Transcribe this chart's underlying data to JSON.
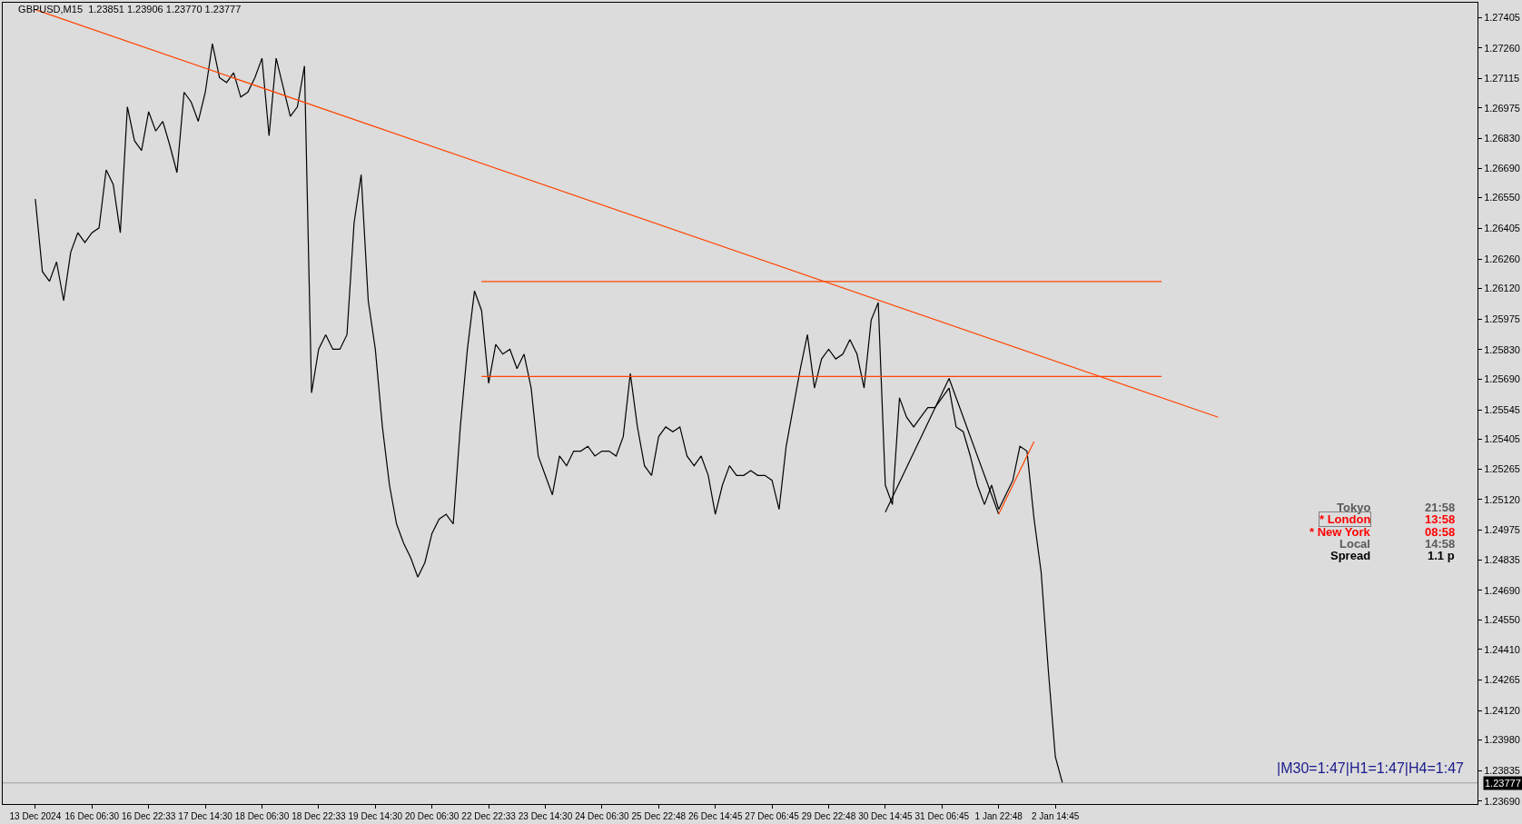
{
  "chart_data": {
    "type": "line",
    "title": "GBPUSD,M15  1.23851 1.23906 1.23770 1.23777",
    "categories": [
      "13 Dec 2024",
      null,
      null,
      null,
      null,
      null,
      null,
      null,
      "16 Dec 06:30",
      null,
      null,
      null,
      null,
      null,
      null,
      null,
      "16 Dec 22:33",
      null,
      null,
      null,
      null,
      null,
      null,
      null,
      "17 Dec 14:30",
      null,
      null,
      null,
      null,
      null,
      null,
      null,
      "18 Dec 06:30",
      null,
      null,
      null,
      null,
      null,
      null,
      null,
      "18 Dec 22:33",
      null,
      null,
      null,
      null,
      null,
      null,
      null,
      "19 Dec 14:30",
      null,
      null,
      null,
      null,
      null,
      null,
      null,
      "20 Dec 06:30",
      null,
      null,
      null,
      null,
      null,
      null,
      null,
      "22 Dec 22:33",
      null,
      null,
      null,
      null,
      null,
      null,
      null,
      "23 Dec 14:30",
      null,
      null,
      null,
      null,
      null,
      null,
      null,
      "24 Dec 06:30",
      null,
      null,
      null,
      null,
      null,
      null,
      null,
      "25 Dec 22:48",
      null,
      null,
      null,
      null,
      null,
      null,
      null,
      "26 Dec 14:45",
      null,
      null,
      null,
      null,
      null,
      null,
      null,
      "27 Dec 06:45",
      null,
      null,
      null,
      null,
      null,
      null,
      null,
      "29 Dec 22:48",
      null,
      null,
      null,
      null,
      null,
      null,
      null,
      "30 Dec 14:45",
      null,
      null,
      null,
      null,
      null,
      null,
      null,
      "31 Dec 06:45",
      null,
      null,
      null,
      null,
      null,
      null,
      null,
      "1 Jan 22:48",
      null,
      null,
      null,
      null,
      null,
      null,
      null,
      "2 Jan 14:45",
      null,
      null,
      null,
      null,
      null,
      null,
      null,
      null,
      null,
      null,
      null,
      null,
      null,
      null,
      null,
      null,
      null,
      null,
      null,
      null,
      null,
      null,
      null,
      null,
      null,
      null,
      null,
      null,
      null,
      null,
      null,
      null,
      null,
      null,
      null,
      null,
      null,
      null,
      null,
      null,
      null,
      null,
      null,
      null,
      null,
      null,
      null,
      null,
      null,
      null,
      null,
      null,
      null,
      null,
      null,
      null,
      null,
      null,
      null
    ],
    "ylim": [
      1.23677,
      1.27474
    ],
    "yticks": [
      {
        "value": 1.27405,
        "label": "1.27405"
      },
      {
        "value": 1.2726,
        "label": "1.27260"
      },
      {
        "value": 1.27115,
        "label": "1.27115"
      },
      {
        "value": 1.26975,
        "label": "1.26975"
      },
      {
        "value": 1.2683,
        "label": "1.26830"
      },
      {
        "value": 1.2669,
        "label": "1.26690"
      },
      {
        "value": 1.2655,
        "label": "1.26550"
      },
      {
        "value": 1.26405,
        "label": "1.26405"
      },
      {
        "value": 1.2626,
        "label": "1.26260"
      },
      {
        "value": 1.2612,
        "label": "1.26120"
      },
      {
        "value": 1.25975,
        "label": "1.25975"
      },
      {
        "value": 1.2583,
        "label": "1.25830"
      },
      {
        "value": 1.2569,
        "label": "1.25690"
      },
      {
        "value": 1.25545,
        "label": "1.25545"
      },
      {
        "value": 1.25405,
        "label": "1.25405"
      },
      {
        "value": 1.25265,
        "label": "1.25265"
      },
      {
        "value": 1.2512,
        "label": "1.25120"
      },
      {
        "value": 1.24975,
        "label": "1.24975"
      },
      {
        "value": 1.24835,
        "label": "1.24835"
      },
      {
        "value": 1.2469,
        "label": "1.24690"
      },
      {
        "value": 1.2455,
        "label": "1.24550"
      },
      {
        "value": 1.2441,
        "label": "1.24410"
      },
      {
        "value": 1.24265,
        "label": "1.24265"
      },
      {
        "value": 1.2412,
        "label": "1.24120"
      },
      {
        "value": 1.2398,
        "label": "1.23980"
      },
      {
        "value": 1.23835,
        "label": "1.23835"
      },
      {
        "value": 1.2369,
        "label": "1.23690"
      }
    ],
    "grid": false,
    "series": [
      {
        "color": "#000000",
        "values": [
          1.26544,
          1.262,
          1.26154,
          1.26246,
          1.26062,
          1.26292,
          1.26384,
          1.26338,
          1.26384,
          1.26407,
          1.26682,
          1.26613,
          1.26384,
          1.26981,
          1.2682,
          1.26774,
          1.26958,
          1.26866,
          1.26912,
          1.26797,
          1.26669,
          1.2705,
          1.27004,
          1.26912,
          1.2705,
          1.2728,
          1.27119,
          1.27096,
          1.27142,
          1.27027,
          1.2705,
          1.27119,
          1.27211,
          1.26843,
          1.27211,
          1.27073,
          1.26935,
          1.26981,
          1.27174,
          1.25625,
          1.25832,
          1.25901,
          1.25832,
          1.25832,
          1.25901,
          1.2643,
          1.26659,
          1.26062,
          1.25832,
          1.25464,
          1.25188,
          1.25004,
          1.24913,
          1.24844,
          1.24752,
          1.24821,
          1.24959,
          1.25027,
          1.2505,
          1.25004,
          1.25464,
          1.25832,
          1.26108,
          1.26016,
          1.25671,
          1.25855,
          1.25809,
          1.25832,
          1.2574,
          1.25809,
          1.25648,
          1.25326,
          1.25234,
          1.25142,
          1.25326,
          1.2528,
          1.25349,
          1.25349,
          1.25372,
          1.25326,
          1.25349,
          1.25349,
          1.25326,
          1.25418,
          1.25717,
          1.25464,
          1.2528,
          1.25234,
          1.25418,
          1.25464,
          1.25441,
          1.25464,
          1.25326,
          1.2528,
          1.25326,
          1.25234,
          1.2505,
          1.25188,
          1.2528,
          1.25234,
          1.25234,
          1.25257,
          1.25234,
          1.25234,
          1.25211,
          1.25073,
          1.25372,
          1.25556,
          1.2574,
          1.25901,
          1.25648,
          1.25786,
          1.25832,
          1.25786,
          1.25809,
          1.25878,
          1.25809,
          1.25648,
          1.2597,
          1.26053,
          1.25188,
          1.25096,
          1.25602,
          1.2551,
          1.25464,
          1.2551,
          1.25556,
          1.25556,
          1.25602,
          1.25648,
          1.25464,
          1.25441,
          1.25326,
          1.25188,
          1.25096,
          1.25188,
          1.25073,
          1.25142,
          1.25211,
          1.25372,
          1.25349,
          1.25027,
          1.24775,
          1.24315,
          1.23901,
          1.23777,
          null,
          null,
          null,
          null,
          null,
          null,
          null,
          null,
          null,
          null,
          null,
          null,
          null,
          null,
          null,
          null,
          null,
          null,
          null,
          null,
          null,
          null,
          null,
          null,
          null,
          null,
          null,
          null,
          null,
          null,
          null,
          null,
          null,
          null,
          null,
          null,
          null,
          null,
          null,
          null,
          null,
          null,
          null,
          null,
          null,
          null,
          null,
          null,
          null,
          null,
          null,
          null,
          null,
          null,
          null,
          null,
          null,
          null
        ]
      },
      {
        "color": "#ff4500",
        "values": [
          1.27441,
          null,
          null,
          null,
          null,
          null,
          null,
          null,
          null,
          null,
          null,
          null,
          null,
          null,
          null,
          null,
          null,
          null,
          null,
          null,
          null,
          null,
          null,
          null,
          null,
          null,
          null,
          null,
          null,
          null,
          null,
          null,
          null,
          null,
          null,
          null,
          null,
          null,
          null,
          null,
          null,
          null,
          null,
          null,
          null,
          null,
          null,
          null,
          null,
          null,
          null,
          null,
          null,
          null,
          null,
          null,
          null,
          null,
          null,
          null,
          null,
          null,
          null,
          null,
          null,
          null,
          null,
          null,
          null,
          null,
          null,
          null,
          null,
          null,
          null,
          null,
          null,
          null,
          null,
          null,
          null,
          null,
          null,
          null,
          null,
          null,
          null,
          null,
          null,
          null,
          null,
          null,
          null,
          null,
          null,
          null,
          null,
          null,
          null,
          null,
          null,
          null,
          null,
          null,
          null,
          null,
          null,
          null,
          null,
          null,
          null,
          null,
          null,
          null,
          null,
          null,
          null,
          null,
          null,
          null,
          null,
          null,
          null,
          null,
          null,
          null,
          null,
          null,
          null,
          null,
          null,
          null,
          null,
          null,
          null,
          null,
          null,
          null,
          null,
          null,
          null,
          null,
          null,
          null,
          null,
          null,
          null,
          null,
          null,
          null,
          null,
          null,
          null,
          null,
          null,
          null,
          null,
          null,
          null,
          null,
          null,
          null,
          null,
          null,
          null,
          null,
          null,
          1.2551,
          null,
          null,
          null,
          null,
          null,
          null,
          null,
          null,
          null,
          null,
          null,
          null,
          null,
          null,
          null,
          null,
          null,
          null,
          null,
          null,
          null,
          null,
          null,
          null,
          null,
          null,
          null,
          null,
          null,
          null,
          null,
          null,
          null,
          null,
          null,
          null
        ]
      },
      {
        "color": "#ff4500",
        "values": [
          null,
          null,
          null,
          null,
          null,
          null,
          null,
          null,
          null,
          null,
          null,
          null,
          null,
          null,
          null,
          null,
          null,
          null,
          null,
          null,
          null,
          null,
          null,
          null,
          null,
          null,
          null,
          null,
          null,
          null,
          null,
          null,
          null,
          null,
          null,
          null,
          null,
          null,
          null,
          null,
          null,
          null,
          null,
          null,
          null,
          null,
          null,
          null,
          null,
          null,
          null,
          null,
          null,
          null,
          null,
          null,
          null,
          null,
          null,
          null,
          null,
          null,
          null,
          1.26153,
          null,
          null,
          null,
          null,
          null,
          null,
          null,
          null,
          null,
          null,
          null,
          null,
          null,
          null,
          null,
          null,
          null,
          null,
          null,
          null,
          null,
          null,
          null,
          null,
          null,
          null,
          null,
          null,
          null,
          null,
          null,
          null,
          null,
          null,
          null,
          null,
          null,
          null,
          null,
          null,
          null,
          null,
          null,
          null,
          null,
          null,
          null,
          null,
          null,
          null,
          null,
          null,
          null,
          null,
          null,
          null,
          null,
          null,
          null,
          null,
          null,
          null,
          null,
          null,
          null,
          null,
          null,
          null,
          null,
          null,
          null,
          null,
          null,
          null,
          null,
          null,
          null,
          null,
          null,
          null,
          null,
          null,
          null,
          null,
          null,
          null,
          null,
          null,
          null,
          null,
          null,
          null,
          null,
          null,
          null,
          1.26153,
          null,
          null,
          null,
          null,
          null,
          null,
          null,
          null,
          null,
          null,
          null,
          null,
          null,
          null,
          null,
          null,
          null,
          null,
          null,
          null,
          null,
          null,
          null,
          null,
          null,
          null,
          null,
          null,
          null,
          null,
          null,
          null,
          null,
          null,
          null,
          null,
          null,
          null,
          null,
          null,
          null,
          null,
          null,
          null
        ]
      },
      {
        "color": "#ff4500",
        "values": [
          null,
          null,
          null,
          null,
          null,
          null,
          null,
          null,
          null,
          null,
          null,
          null,
          null,
          null,
          null,
          null,
          null,
          null,
          null,
          null,
          null,
          null,
          null,
          null,
          null,
          null,
          null,
          null,
          null,
          null,
          null,
          null,
          null,
          null,
          null,
          null,
          null,
          null,
          null,
          null,
          null,
          null,
          null,
          null,
          null,
          null,
          null,
          null,
          null,
          null,
          null,
          null,
          null,
          null,
          null,
          null,
          null,
          null,
          null,
          null,
          null,
          null,
          null,
          1.25703,
          null,
          null,
          null,
          null,
          null,
          null,
          null,
          null,
          null,
          null,
          null,
          null,
          null,
          null,
          null,
          null,
          null,
          null,
          null,
          null,
          null,
          null,
          null,
          null,
          null,
          null,
          null,
          null,
          null,
          null,
          null,
          null,
          null,
          null,
          null,
          null,
          null,
          null,
          null,
          null,
          null,
          null,
          null,
          null,
          null,
          null,
          null,
          null,
          null,
          null,
          null,
          null,
          null,
          null,
          null,
          null,
          null,
          null,
          null,
          null,
          null,
          null,
          null,
          null,
          null,
          null,
          null,
          null,
          null,
          null,
          null,
          null,
          null,
          null,
          null,
          null,
          null,
          null,
          null,
          null,
          null,
          null,
          null,
          null,
          null,
          null,
          null,
          null,
          null,
          null,
          null,
          null,
          null,
          null,
          null,
          1.25703,
          null,
          null,
          null,
          null,
          null,
          null,
          null,
          null,
          null,
          null,
          null,
          null,
          null,
          null,
          null,
          null,
          null,
          null,
          null,
          null,
          null,
          null,
          null,
          null,
          null,
          null,
          null,
          null,
          null,
          null,
          null,
          null,
          null,
          null,
          null,
          null,
          null,
          null,
          null,
          null,
          null,
          null,
          null,
          null
        ]
      },
      {
        "color": "#000000",
        "values": [
          null,
          null,
          null,
          null,
          null,
          null,
          null,
          null,
          null,
          null,
          null,
          null,
          null,
          null,
          null,
          null,
          null,
          null,
          null,
          null,
          null,
          null,
          null,
          null,
          null,
          null,
          null,
          null,
          null,
          null,
          null,
          null,
          null,
          null,
          null,
          null,
          null,
          null,
          null,
          null,
          null,
          null,
          null,
          null,
          null,
          null,
          null,
          null,
          null,
          null,
          null,
          null,
          null,
          null,
          null,
          null,
          null,
          null,
          null,
          null,
          null,
          null,
          null,
          null,
          null,
          null,
          null,
          null,
          null,
          null,
          null,
          null,
          null,
          null,
          null,
          null,
          null,
          null,
          null,
          null,
          null,
          null,
          null,
          null,
          null,
          null,
          null,
          null,
          null,
          null,
          null,
          null,
          null,
          null,
          null,
          null,
          null,
          null,
          null,
          null,
          null,
          null,
          null,
          null,
          null,
          null,
          null,
          null,
          null,
          null,
          null,
          null,
          null,
          null,
          null,
          null,
          null,
          null,
          null,
          null,
          1.2506,
          null,
          null,
          null,
          null,
          null,
          null,
          null,
          null,
          1.25694,
          null,
          null,
          null,
          null,
          null,
          null,
          1.2505,
          null,
          null,
          null,
          null,
          null,
          null,
          null,
          null,
          null,
          null,
          null,
          null,
          null,
          null,
          null,
          null,
          null,
          null,
          null,
          null,
          null,
          null,
          null,
          null,
          null,
          null,
          null,
          null,
          null,
          null,
          null,
          null,
          null,
          null,
          null,
          null,
          null,
          null,
          null,
          null,
          null,
          null,
          null,
          null,
          null,
          null,
          null,
          null,
          null,
          null,
          null,
          null,
          null,
          null,
          null,
          null,
          null,
          null,
          null,
          null,
          null,
          null,
          null,
          null,
          null,
          null,
          null
        ]
      },
      {
        "color": "#ff4500",
        "values": [
          null,
          null,
          null,
          null,
          null,
          null,
          null,
          null,
          null,
          null,
          null,
          null,
          null,
          null,
          null,
          null,
          null,
          null,
          null,
          null,
          null,
          null,
          null,
          null,
          null,
          null,
          null,
          null,
          null,
          null,
          null,
          null,
          null,
          null,
          null,
          null,
          null,
          null,
          null,
          null,
          null,
          null,
          null,
          null,
          null,
          null,
          null,
          null,
          null,
          null,
          null,
          null,
          null,
          null,
          null,
          null,
          null,
          null,
          null,
          null,
          null,
          null,
          null,
          null,
          null,
          null,
          null,
          null,
          null,
          null,
          null,
          null,
          null,
          null,
          null,
          null,
          null,
          null,
          null,
          null,
          null,
          null,
          null,
          null,
          null,
          null,
          null,
          null,
          null,
          null,
          null,
          null,
          null,
          null,
          null,
          null,
          null,
          null,
          null,
          null,
          null,
          null,
          null,
          null,
          null,
          null,
          null,
          null,
          null,
          null,
          null,
          null,
          null,
          null,
          null,
          null,
          null,
          null,
          null,
          null,
          null,
          null,
          null,
          null,
          null,
          null,
          null,
          null,
          null,
          null,
          null,
          null,
          null,
          null,
          null,
          null,
          1.2505,
          null,
          null,
          null,
          null,
          1.25395,
          null,
          null,
          null,
          null,
          null,
          null,
          null,
          null,
          null,
          null,
          null,
          null,
          null,
          null,
          null,
          null,
          null,
          null,
          null,
          null,
          null,
          null,
          null,
          null,
          null,
          null,
          null,
          null,
          null,
          null,
          null,
          null,
          null,
          null,
          null,
          null,
          null,
          null,
          null,
          null,
          null,
          null,
          null,
          null,
          null,
          null,
          null,
          null,
          null,
          null,
          null,
          null,
          null,
          null,
          null,
          null,
          null,
          null,
          null,
          null,
          null,
          null
        ]
      }
    ],
    "ref_lines": [
      {
        "axis": "y",
        "value": 1.23777,
        "label": "1.23777",
        "color": "#a0a0a0"
      }
    ],
    "annotations": [
      "Tokyo",
      "21:58",
      "* London",
      "13:58",
      "* New York",
      "08:58",
      "Local",
      "14:58",
      "Spread",
      "1.1 p",
      "|M30=1:47|H1=1:47|H4=1:47"
    ]
  }
}
